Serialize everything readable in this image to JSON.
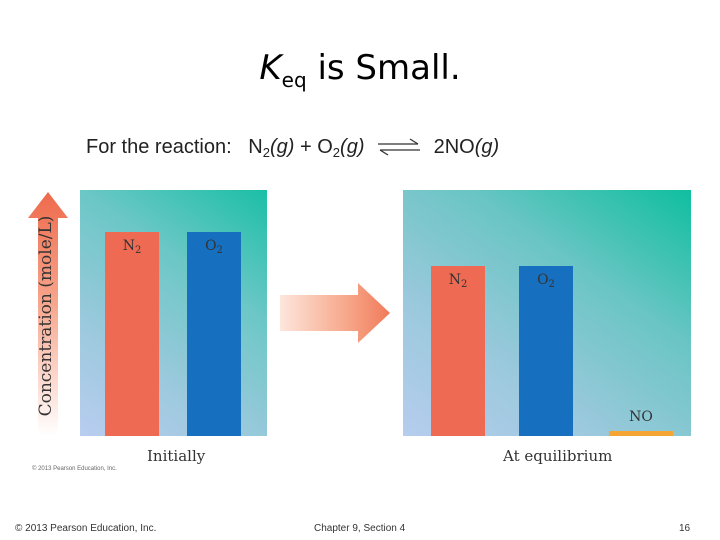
{
  "title": {
    "k": "K",
    "sub": "eq",
    "rest": " is Small."
  },
  "reaction": {
    "prefix": "For the reaction:",
    "r1": "N",
    "r1_sub": "2",
    "r1_state": "(g)",
    "plus": " + ",
    "r2": "O",
    "r2_sub": "2",
    "r2_state": "(g)",
    "product": "2NO",
    "product_state": "(g)"
  },
  "chart_data": {
    "type": "bar",
    "ylabel": "Concentration (mole/L)",
    "ylim": [
      0,
      100
    ],
    "panels": [
      {
        "xlabel": "Initially",
        "categories": [
          "N2",
          "O2"
        ],
        "values": [
          83,
          83
        ],
        "colors": [
          "#ef6a52",
          "#1670bf"
        ]
      },
      {
        "xlabel": "At equilibrium",
        "categories": [
          "N2",
          "O2",
          "NO"
        ],
        "values": [
          69,
          69,
          2
        ],
        "colors": [
          "#ef6a52",
          "#1670bf",
          "#f5a532"
        ]
      }
    ]
  },
  "colors": {
    "n2": "#ef6a52",
    "o2": "#1670bf",
    "no": "#f5a532",
    "arrow": "#f07a5a"
  },
  "image_credit": "© 2013 Pearson Education, Inc.",
  "footer": {
    "left": "© 2013 Pearson Education, Inc.",
    "center": "Chapter 9, Section 4",
    "page": "16"
  }
}
